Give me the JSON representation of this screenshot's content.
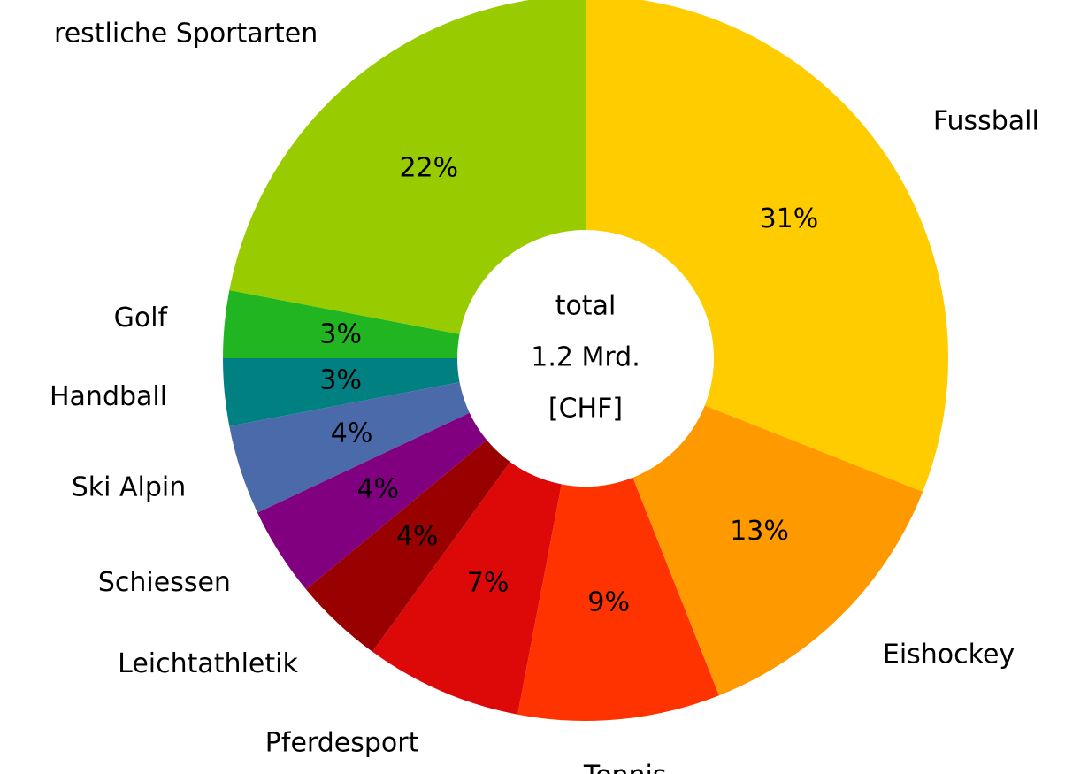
{
  "chart_data": {
    "type": "donut",
    "categories": [
      "Fussball",
      "Eishockey",
      "Tennis",
      "Pferdesport",
      "Leichtathletik",
      "Schiessen",
      "Ski Alpin",
      "Handball",
      "Golf",
      "restliche Sportarten"
    ],
    "values": [
      31,
      13,
      9,
      7,
      4,
      4,
      4,
      3,
      3,
      22
    ],
    "value_labels": [
      "31%",
      "13%",
      "9%",
      "7%",
      "4%",
      "4%",
      "4%",
      "3%",
      "3%",
      "22%"
    ],
    "colors": [
      "#ffcc00",
      "#ff9900",
      "#ff3300",
      "#dd0808",
      "#990000",
      "#800080",
      "#4a6aaa",
      "#008080",
      "#22b522",
      "#99cc00"
    ],
    "center_text": [
      "total",
      "1.2 Mrd.",
      "[CHF]"
    ]
  }
}
